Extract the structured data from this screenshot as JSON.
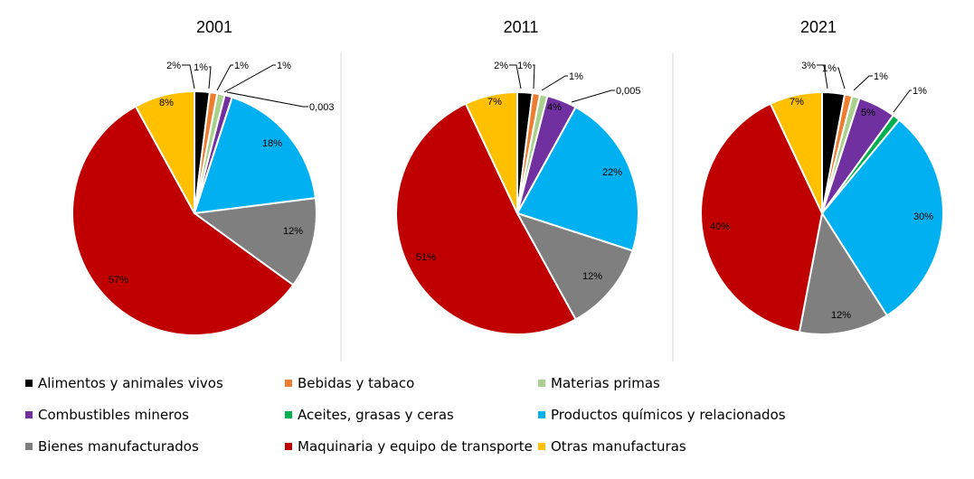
{
  "chart_data": [
    {
      "type": "pie",
      "title": "2001",
      "slices": [
        {
          "category": "Alimentos y animales vivos",
          "value": 2,
          "label": "2%"
        },
        {
          "category": "Bebidas y tabaco",
          "value": 1,
          "label": "1%"
        },
        {
          "category": "Materias primas",
          "value": 1,
          "label": "1%"
        },
        {
          "category": "Combustibles mineros",
          "value": 1,
          "label": "1%"
        },
        {
          "category": "Aceites, grasas y ceras",
          "value": 0.003,
          "label": "0,003"
        },
        {
          "category": "Productos químicos y relacionados",
          "value": 18,
          "label": "18%"
        },
        {
          "category": "Bienes manufacturados",
          "value": 12,
          "label": "12%"
        },
        {
          "category": "Maquinaria y equipo de transporte",
          "value": 57,
          "label": "57%"
        },
        {
          "category": "Otras manufacturas",
          "value": 8,
          "label": "8%"
        }
      ]
    },
    {
      "type": "pie",
      "title": "2011",
      "slices": [
        {
          "category": "Alimentos y animales vivos",
          "value": 2,
          "label": "2%"
        },
        {
          "category": "Bebidas y tabaco",
          "value": 1,
          "label": "1%"
        },
        {
          "category": "Materias primas",
          "value": 1,
          "label": "1%"
        },
        {
          "category": "Combustibles mineros",
          "value": 4,
          "label": "4%"
        },
        {
          "category": "Aceites, grasas y ceras",
          "value": 0.005,
          "label": "0,005"
        },
        {
          "category": "Productos químicos y relacionados",
          "value": 22,
          "label": "22%"
        },
        {
          "category": "Bienes manufacturados",
          "value": 12,
          "label": "12%"
        },
        {
          "category": "Maquinaria y equipo de transporte",
          "value": 51,
          "label": "51%"
        },
        {
          "category": "Otras manufacturas",
          "value": 7,
          "label": "7%"
        }
      ]
    },
    {
      "type": "pie",
      "title": "2021",
      "slices": [
        {
          "category": "Alimentos y animales vivos",
          "value": 3,
          "label": "3%"
        },
        {
          "category": "Bebidas y tabaco",
          "value": 1,
          "label": "1%"
        },
        {
          "category": "Materias primas",
          "value": 1,
          "label": "1%"
        },
        {
          "category": "Combustibles mineros",
          "value": 5,
          "label": "5%"
        },
        {
          "category": "Aceites, grasas y ceras",
          "value": 1,
          "label": "1%"
        },
        {
          "category": "Productos químicos y relacionados",
          "value": 30,
          "label": "30%"
        },
        {
          "category": "Bienes manufacturados",
          "value": 12,
          "label": "12%"
        },
        {
          "category": "Maquinaria y equipo de transporte",
          "value": 40,
          "label": "40%"
        },
        {
          "category": "Otras manufacturas",
          "value": 7,
          "label": "7%"
        }
      ]
    }
  ],
  "legend": [
    {
      "label": "Alimentos y animales vivos",
      "color": "#000000"
    },
    {
      "label": "Bebidas y tabaco",
      "color": "#ED7D31"
    },
    {
      "label": "Materias primas",
      "color": "#A9D18E"
    },
    {
      "label": "Combustibles mineros",
      "color": "#7030A0"
    },
    {
      "label": "Aceites, grasas y ceras",
      "color": "#00B050"
    },
    {
      "label": "Productos químicos y relacionados",
      "color": "#00B0F0"
    },
    {
      "label": "Bienes manufacturados",
      "color": "#7F7F7F"
    },
    {
      "label": "Maquinaria y equipo de transporte",
      "color": "#C00000"
    },
    {
      "label": "Otras manufacturas",
      "color": "#FFC000"
    }
  ],
  "legend_placement": "bottom"
}
